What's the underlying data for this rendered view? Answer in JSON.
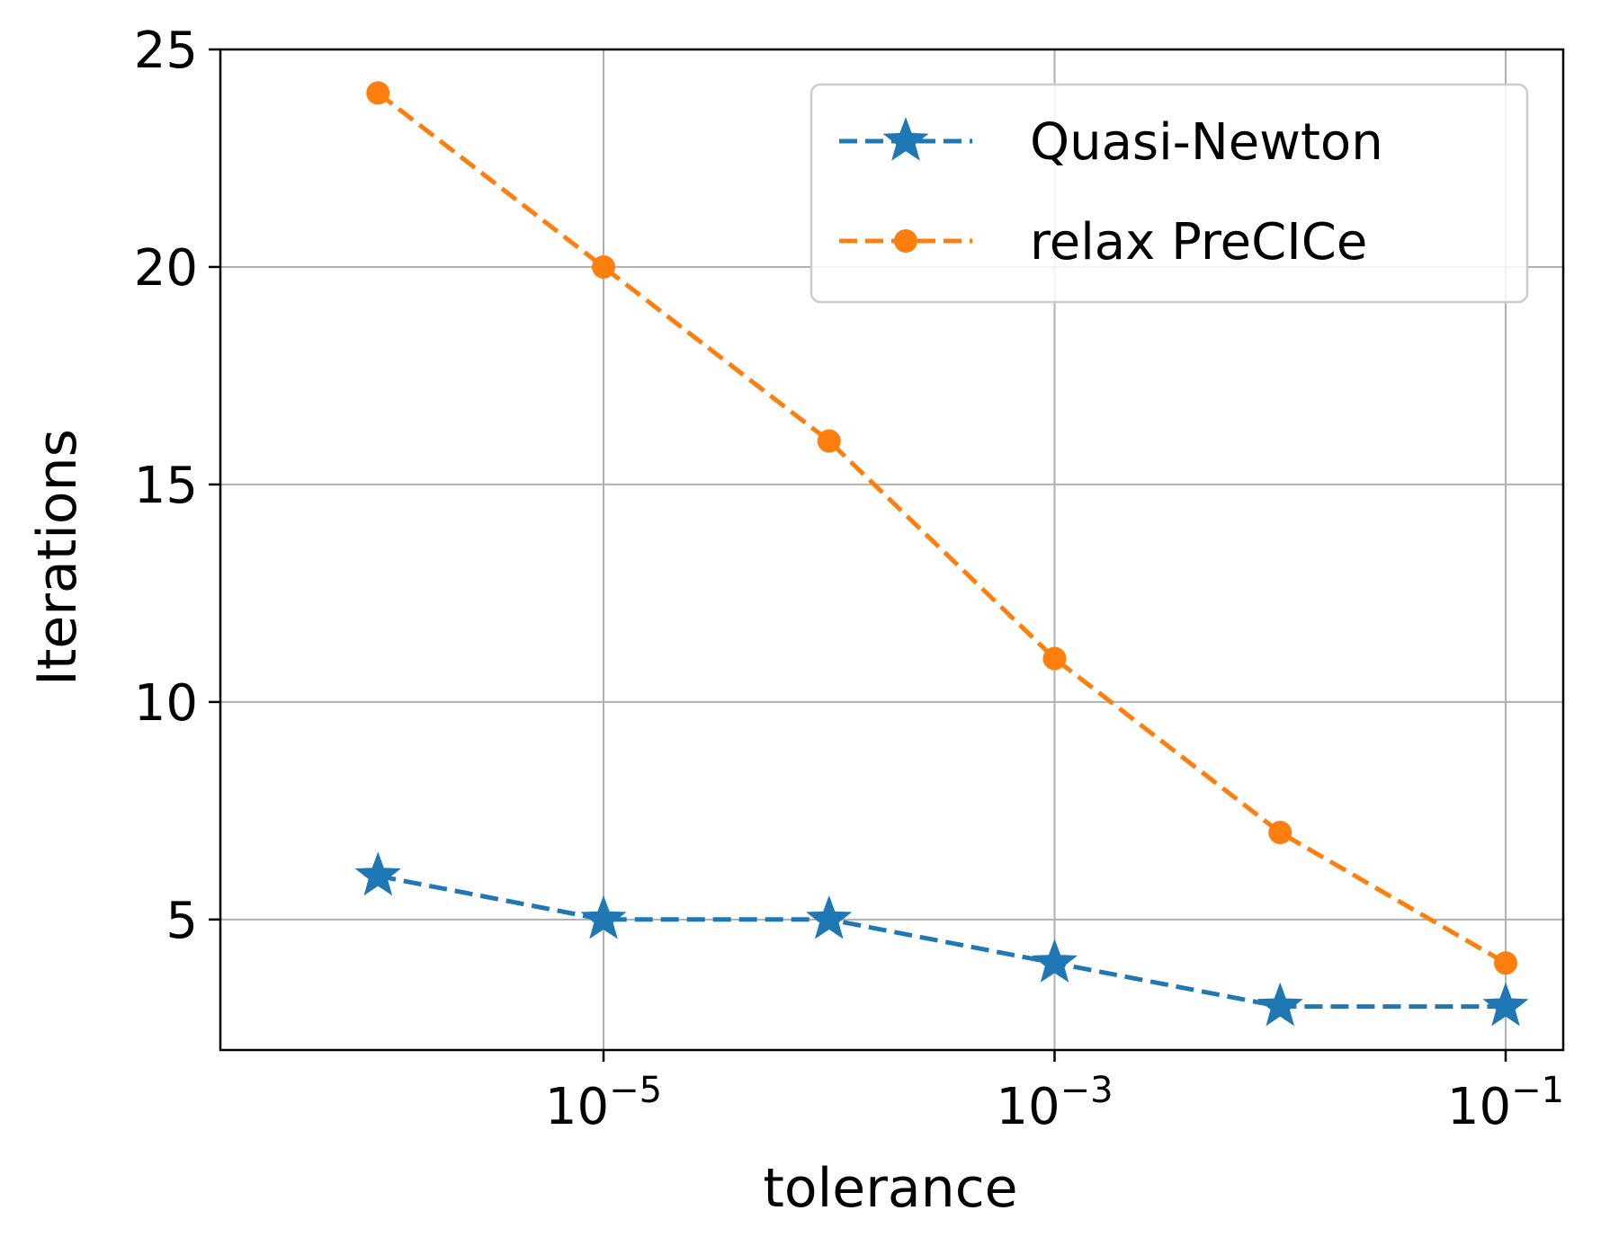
{
  "chart_data": {
    "type": "line",
    "xscale": "log",
    "xlabel": "tolerance",
    "ylabel": "Iterations",
    "xlim": [
      2e-07,
      0.18
    ],
    "ylim": [
      2,
      25
    ],
    "x_ticks": [
      {
        "value": 1e-05,
        "base": "10",
        "exp": "−5"
      },
      {
        "value": 0.001,
        "base": "10",
        "exp": "−3"
      },
      {
        "value": 0.1,
        "base": "10",
        "exp": "−1"
      }
    ],
    "y_ticks": [
      {
        "value": 5,
        "label": "5"
      },
      {
        "value": 10,
        "label": "10"
      },
      {
        "value": 15,
        "label": "15"
      },
      {
        "value": 20,
        "label": "20"
      },
      {
        "value": 25,
        "label": "25"
      }
    ],
    "grid": true,
    "legend_position": "top-right",
    "series": [
      {
        "name": "Quasi-Newton",
        "color": "#1f77b4",
        "marker": "star",
        "linestyle": "dashed",
        "x": [
          1e-06,
          1e-05,
          0.0001,
          0.001,
          0.01,
          0.1
        ],
        "y": [
          6,
          5,
          5,
          4,
          3,
          3
        ]
      },
      {
        "name": "relax PreCICe",
        "color": "#ff7f0e",
        "marker": "circle",
        "linestyle": "dashed",
        "x": [
          1e-06,
          1e-05,
          0.0001,
          0.001,
          0.01,
          0.1
        ],
        "y": [
          24,
          20,
          16,
          11,
          7,
          4
        ]
      }
    ]
  }
}
